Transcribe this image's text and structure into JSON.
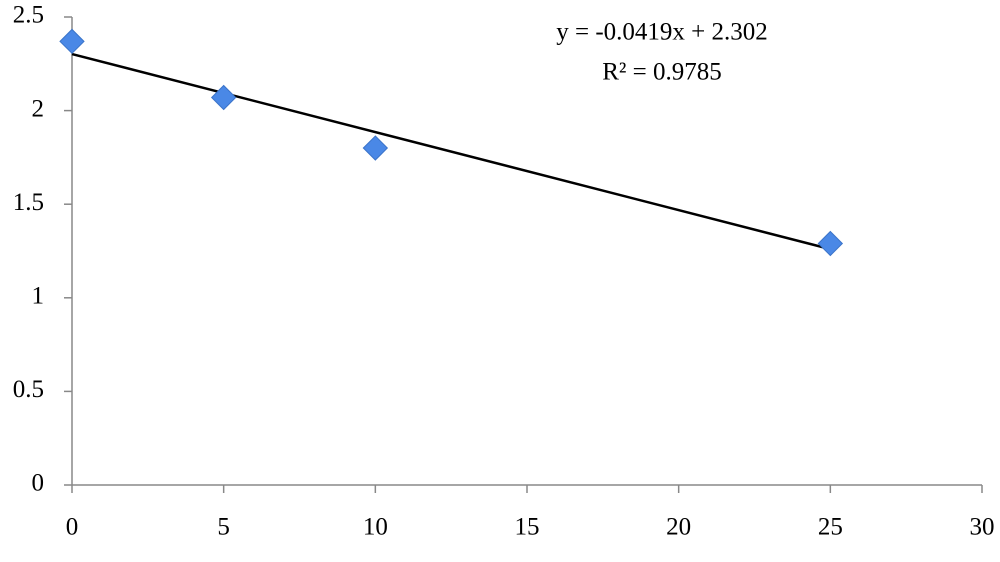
{
  "chart_data": {
    "type": "scatter",
    "annotations": [
      "y = -0.0419x + 2.302",
      "R² = 0.9785"
    ],
    "series": [
      {
        "color": "#4a88e6",
        "x": [
          0,
          5,
          10,
          25
        ],
        "values": [
          2.37,
          2.07,
          1.8,
          1.29
        ]
      }
    ],
    "trendline": {
      "color": "#000000",
      "x": [
        0,
        25
      ],
      "values": [
        2.302,
        1.26
      ]
    },
    "xlim": [
      0,
      30
    ],
    "xticks": [
      0,
      5,
      10,
      15,
      20,
      25,
      30
    ],
    "ylim": [
      0,
      2.5
    ],
    "yticks": [
      0,
      0.5,
      1,
      1.5,
      2,
      2.5
    ],
    "grid": false
  }
}
